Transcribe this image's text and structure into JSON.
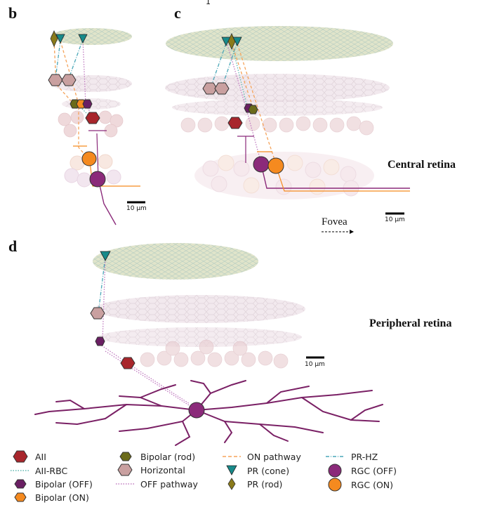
{
  "panels": {
    "b": {
      "letter": "b",
      "scale": "10 μm"
    },
    "c": {
      "letter": "c",
      "scale": "10 μm",
      "label": "Central retina",
      "fovea": "Fovea"
    },
    "d": {
      "letter": "d",
      "scale": "10 μm",
      "label": "Peripheral retina"
    }
  },
  "top_stray_mark": "1",
  "colors": {
    "aii": "#a8262c",
    "bipolar_off": "#6a1f63",
    "bipolar_on": "#f58a1f",
    "bipolar_rod": "#6b6b1a",
    "horizontal": "#c9a0a0",
    "pr_cone": "#178a8a",
    "pr_rod": "#8a7a1a",
    "rgc_off": "#8b2a7a",
    "rgc_on": "#f58a1f",
    "on_pathway": "#f5a35a",
    "off_pathway": "#c07ac0",
    "pr_hz": "#4aa7b8",
    "aii_rbc": "#5fb8b0"
  },
  "legend": [
    {
      "label": "AII",
      "icon": "red-hexagon-icon"
    },
    {
      "label": "AII-RBC",
      "icon": "teal-dotted-line-icon"
    },
    {
      "label": "Bipolar (OFF)",
      "icon": "purple-hexagon-icon"
    },
    {
      "label": "Bipolar (ON)",
      "icon": "orange-hexagon-icon"
    },
    {
      "label": "Bipolar (rod)",
      "icon": "olive-hexagon-icon"
    },
    {
      "label": "Horizontal",
      "icon": "pink-hexagon-icon"
    },
    {
      "label": "OFF pathway",
      "icon": "pink-dotted-line-icon"
    },
    {
      "label": "ON pathway",
      "icon": "orange-dashed-line-icon"
    },
    {
      "label": "PR (cone)",
      "icon": "teal-triangle-icon"
    },
    {
      "label": "PR (rod)",
      "icon": "olive-diamond-icon"
    },
    {
      "label": "PR-HZ",
      "icon": "blue-dashdot-line-icon"
    },
    {
      "label": "RGC (OFF)",
      "icon": "purple-circle-icon"
    },
    {
      "label": "RGC (ON)",
      "icon": "orange-circle-icon"
    }
  ]
}
